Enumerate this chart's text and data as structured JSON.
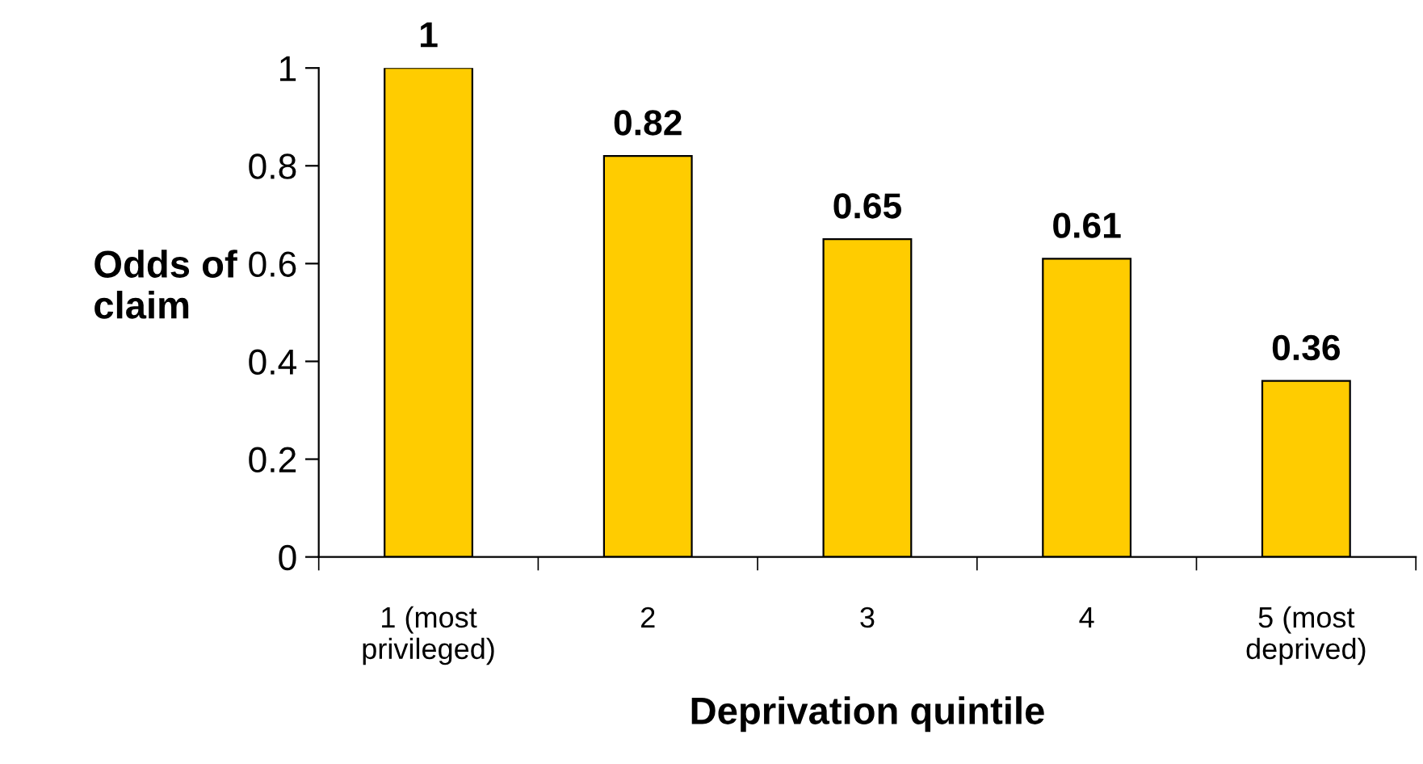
{
  "chart_data": {
    "type": "bar",
    "xlabel": "Deprivation quintile",
    "ylabel": "Odds of\nclaim",
    "categories": [
      "1 (most\nprivileged)",
      "2",
      "3",
      "4",
      "5 (most\ndeprived)"
    ],
    "values": [
      1,
      0.82,
      0.65,
      0.61,
      0.36
    ],
    "color": "#ffcc00",
    "ylim": [
      0,
      1
    ],
    "yticks": [
      0,
      0.2,
      0.4,
      0.6,
      0.8,
      1
    ],
    "data_labels": true,
    "grid": false,
    "legend": false
  }
}
